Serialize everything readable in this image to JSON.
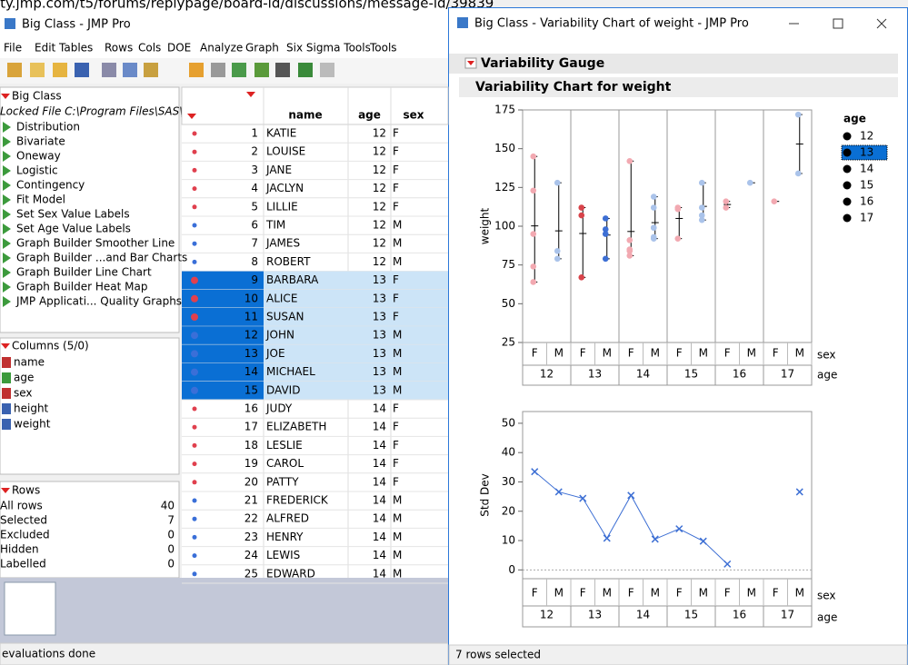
{
  "background": {
    "url": "ity.jmp.com/t5/forums/replypage/board-id/discussions/message-id/39839",
    "title": "Big Class - JMP Pro",
    "menu": [
      "File",
      "Edit",
      "Tables",
      "Rows",
      "Cols",
      "DOE",
      "Analyze",
      "Graph",
      "Six Sigma Tools",
      "Tools"
    ],
    "table_name": "Big Class",
    "locked_file": "Locked File  C:\\Program Files\\SAS\\J",
    "scripts": [
      "Distribution",
      "Bivariate",
      "Oneway",
      "Logistic",
      "Contingency",
      "Fit Model",
      "Set Sex Value Labels",
      "Set Age Value Labels",
      "Graph Builder Smoother Line",
      "Graph Builder ...and Bar Charts",
      "Graph Builder Line Chart",
      "Graph Builder Heat Map",
      "JMP Applicati... Quality Graphs"
    ],
    "columns_header": "Columns (5/0)",
    "columns": [
      {
        "name": "name",
        "kind": "nominal"
      },
      {
        "name": "age",
        "kind": "ordinal"
      },
      {
        "name": "sex",
        "kind": "nominal"
      },
      {
        "name": "height",
        "kind": "continuous"
      },
      {
        "name": "weight",
        "kind": "continuous"
      }
    ],
    "rows_header": "Rows",
    "row_stats": [
      {
        "label": "All rows",
        "value": 40
      },
      {
        "label": "Selected",
        "value": 7
      },
      {
        "label": "Excluded",
        "value": 0
      },
      {
        "label": "Hidden",
        "value": 0
      },
      {
        "label": "Labelled",
        "value": 0
      }
    ],
    "table": {
      "headers": [
        "name",
        "age",
        "sex"
      ],
      "rows": [
        {
          "n": 1,
          "name": "KATIE",
          "age": 12,
          "sex": "F",
          "selected": false
        },
        {
          "n": 2,
          "name": "LOUISE",
          "age": 12,
          "sex": "F",
          "selected": false
        },
        {
          "n": 3,
          "name": "JANE",
          "age": 12,
          "sex": "F",
          "selected": false
        },
        {
          "n": 4,
          "name": "JACLYN",
          "age": 12,
          "sex": "F",
          "selected": false
        },
        {
          "n": 5,
          "name": "LILLIE",
          "age": 12,
          "sex": "F",
          "selected": false
        },
        {
          "n": 6,
          "name": "TIM",
          "age": 12,
          "sex": "M",
          "selected": false
        },
        {
          "n": 7,
          "name": "JAMES",
          "age": 12,
          "sex": "M",
          "selected": false
        },
        {
          "n": 8,
          "name": "ROBERT",
          "age": 12,
          "sex": "M",
          "selected": false
        },
        {
          "n": 9,
          "name": "BARBARA",
          "age": 13,
          "sex": "F",
          "selected": true
        },
        {
          "n": 10,
          "name": "ALICE",
          "age": 13,
          "sex": "F",
          "selected": true
        },
        {
          "n": 11,
          "name": "SUSAN",
          "age": 13,
          "sex": "F",
          "selected": true
        },
        {
          "n": 12,
          "name": "JOHN",
          "age": 13,
          "sex": "M",
          "selected": true
        },
        {
          "n": 13,
          "name": "JOE",
          "age": 13,
          "sex": "M",
          "selected": true
        },
        {
          "n": 14,
          "name": "MICHAEL",
          "age": 13,
          "sex": "M",
          "selected": true
        },
        {
          "n": 15,
          "name": "DAVID",
          "age": 13,
          "sex": "M",
          "selected": true
        },
        {
          "n": 16,
          "name": "JUDY",
          "age": 14,
          "sex": "F",
          "selected": false
        },
        {
          "n": 17,
          "name": "ELIZABETH",
          "age": 14,
          "sex": "F",
          "selected": false
        },
        {
          "n": 18,
          "name": "LESLIE",
          "age": 14,
          "sex": "F",
          "selected": false
        },
        {
          "n": 19,
          "name": "CAROL",
          "age": 14,
          "sex": "F",
          "selected": false
        },
        {
          "n": 20,
          "name": "PATTY",
          "age": 14,
          "sex": "F",
          "selected": false
        },
        {
          "n": 21,
          "name": "FREDERICK",
          "age": 14,
          "sex": "M",
          "selected": false
        },
        {
          "n": 22,
          "name": "ALFRED",
          "age": 14,
          "sex": "M",
          "selected": false
        },
        {
          "n": 23,
          "name": "HENRY",
          "age": 14,
          "sex": "M",
          "selected": false
        },
        {
          "n": 24,
          "name": "LEWIS",
          "age": 14,
          "sex": "M",
          "selected": false
        },
        {
          "n": 25,
          "name": "EDWARD",
          "age": 14,
          "sex": "M",
          "selected": false
        }
      ]
    },
    "status": "evaluations done"
  },
  "report": {
    "title": "Big Class - Variability Chart of weight - JMP Pro",
    "outline_1": "Variability Gauge",
    "outline_2": "Variability Chart for weight",
    "status": "7 rows selected"
  },
  "chart_data": [
    {
      "type": "variability",
      "y_label": "weight",
      "ylim": [
        25,
        175
      ],
      "yticks": [
        25,
        50,
        75,
        100,
        125,
        150,
        175
      ],
      "x_row_labels": [
        "sex",
        "age"
      ],
      "ages": [
        12,
        13,
        14,
        15,
        16,
        17
      ],
      "groups": [
        {
          "sex": "F",
          "color": "#f2a9b1",
          "values": [
            95,
            123,
            74,
            145,
            64
          ],
          "mean": 100.2
        },
        {
          "sex": "M",
          "color": "#aac3ea",
          "values": [
            84,
            128,
            79
          ],
          "mean": 97
        },
        {
          "sex": "F",
          "color": "#d8434a",
          "values": [
            112,
            107,
            67
          ],
          "mean": 95.3
        },
        {
          "sex": "M",
          "color": "#3d6fd4",
          "values": [
            98,
            105,
            95,
            79
          ],
          "mean": 94.3
        },
        {
          "sex": "F",
          "color": "#f2a9b1",
          "values": [
            81,
            91,
            142,
            84,
            85
          ],
          "mean": 96.6
        },
        {
          "sex": "M",
          "color": "#aac3ea",
          "values": [
            93,
            99,
            119,
            92,
            112,
            99
          ],
          "mean": 102.3
        },
        {
          "sex": "F",
          "color": "#f2a9b1",
          "values": [
            112,
            111,
            92
          ],
          "mean": 105
        },
        {
          "sex": "M",
          "color": "#aac3ea",
          "values": [
            128,
            112,
            107,
            104
          ],
          "mean": 112.8
        },
        {
          "sex": "F",
          "color": "#f2a9b1",
          "values": [
            112,
            116
          ],
          "mean": 114
        },
        {
          "sex": "M",
          "color": "#aac3ea",
          "values": [
            128
          ],
          "mean": 128
        },
        {
          "sex": "F",
          "color": "#f2a9b1",
          "values": [
            116
          ],
          "mean": 116
        },
        {
          "sex": "M",
          "color": "#aac3ea",
          "values": [
            172,
            134
          ],
          "mean": 153
        }
      ],
      "legend": {
        "title": "age",
        "items": [
          12,
          13,
          14,
          15,
          16,
          17
        ],
        "selected_index": 1
      }
    },
    {
      "type": "line",
      "y_label": "Std Dev",
      "ylim": [
        -3,
        54
      ],
      "yticks": [
        0,
        10,
        20,
        30,
        40,
        50
      ],
      "zero_line": true,
      "color": "#3d6fd4",
      "marker": "x",
      "x_row_labels": [
        "sex",
        "age"
      ],
      "sex_labels": [
        "F",
        "M",
        "F",
        "M",
        "F",
        "M",
        "F",
        "M",
        "F",
        "M",
        "F",
        "M"
      ],
      "ages": [
        12,
        13,
        14,
        15,
        16,
        17
      ],
      "values": [
        33.5,
        26.6,
        24.4,
        10.8,
        25.4,
        10.5,
        14,
        9.8,
        2,
        null,
        null,
        26.6
      ]
    }
  ]
}
